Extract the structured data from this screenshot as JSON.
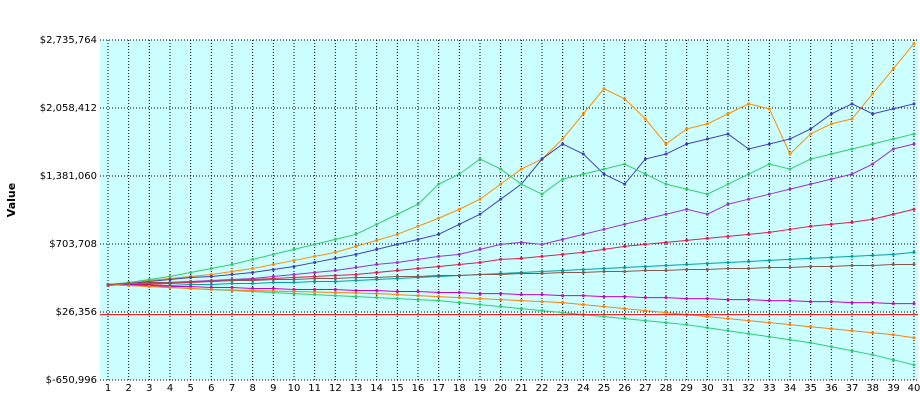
{
  "chart_data": {
    "type": "line",
    "y_label": "Value",
    "x": [
      1,
      2,
      3,
      4,
      5,
      6,
      7,
      8,
      9,
      10,
      11,
      12,
      13,
      14,
      15,
      16,
      17,
      18,
      19,
      20,
      21,
      22,
      23,
      24,
      25,
      26,
      27,
      28,
      29,
      30,
      31,
      32,
      33,
      34,
      35,
      36,
      37,
      38,
      39,
      40
    ],
    "xlim": [
      1,
      40
    ],
    "xticks": [
      1,
      2,
      3,
      4,
      5,
      6,
      7,
      8,
      9,
      10,
      11,
      12,
      13,
      14,
      15,
      16,
      17,
      18,
      19,
      20,
      21,
      22,
      23,
      24,
      25,
      26,
      27,
      28,
      29,
      30,
      31,
      32,
      33,
      34,
      35,
      36,
      37,
      38,
      39,
      40
    ],
    "ylim": [
      -650996,
      2735764
    ],
    "yticks": [
      {
        "value": -650996,
        "label": "$-650,996"
      },
      {
        "value": 26356,
        "label": "$26,356"
      },
      {
        "value": 703708,
        "label": "$703,708"
      },
      {
        "value": 1381060,
        "label": "$1,381,060"
      },
      {
        "value": 2058412,
        "label": "$2,058,412"
      },
      {
        "value": 2735764,
        "label": "$2,735,764"
      }
    ],
    "grid": true,
    "background": "#ccffff",
    "reference_line": {
      "value": 0,
      "color": "#ff0000"
    },
    "series": [
      {
        "color": "#ff8c00",
        "values": [
          300000,
          320000,
          340000,
          360000,
          380000,
          400000,
          430000,
          460000,
          500000,
          540000,
          580000,
          620000,
          680000,
          740000,
          800000,
          880000,
          960000,
          1050000,
          1150000,
          1300000,
          1450000,
          1550000,
          1750000,
          2000000,
          2250000,
          2150000,
          1950000,
          1700000,
          1850000,
          1900000,
          2000000,
          2100000,
          2050000,
          1600000,
          1800000,
          1900000,
          1950000,
          2200000,
          2450000,
          2700000
        ]
      },
      {
        "color": "#3f3fbf",
        "values": [
          300000,
          310000,
          330000,
          350000,
          370000,
          380000,
          400000,
          420000,
          450000,
          480000,
          520000,
          560000,
          600000,
          650000,
          700000,
          750000,
          800000,
          900000,
          1000000,
          1150000,
          1300000,
          1550000,
          1700000,
          1600000,
          1400000,
          1300000,
          1550000,
          1600000,
          1700000,
          1750000,
          1800000,
          1650000,
          1700000,
          1750000,
          1850000,
          2000000,
          2100000,
          2000000,
          2050000,
          2100000
        ]
      },
      {
        "color": "#33cc66",
        "values": [
          300000,
          320000,
          350000,
          380000,
          420000,
          460000,
          500000,
          550000,
          600000,
          650000,
          700000,
          750000,
          800000,
          900000,
          1000000,
          1100000,
          1300000,
          1400000,
          1550000,
          1450000,
          1300000,
          1200000,
          1350000,
          1400000,
          1450000,
          1500000,
          1400000,
          1300000,
          1250000,
          1200000,
          1300000,
          1400000,
          1500000,
          1450000,
          1550000,
          1600000,
          1650000,
          1700000,
          1750000,
          1800000
        ]
      },
      {
        "color": "#9933cc",
        "values": [
          300000,
          300000,
          310000,
          320000,
          330000,
          340000,
          350000,
          360000,
          380000,
          400000,
          420000,
          440000,
          470000,
          500000,
          520000,
          550000,
          580000,
          600000,
          650000,
          700000,
          720000,
          700000,
          750000,
          800000,
          850000,
          900000,
          950000,
          1000000,
          1050000,
          1000000,
          1100000,
          1150000,
          1200000,
          1250000,
          1300000,
          1350000,
          1400000,
          1500000,
          1650000,
          1700000
        ]
      },
      {
        "color": "#e6194b",
        "values": [
          290000,
          300000,
          300000,
          310000,
          320000,
          330000,
          340000,
          350000,
          360000,
          370000,
          380000,
          390000,
          400000,
          420000,
          440000,
          460000,
          480000,
          500000,
          520000,
          550000,
          560000,
          580000,
          600000,
          620000,
          650000,
          680000,
          700000,
          720000,
          740000,
          760000,
          780000,
          800000,
          820000,
          850000,
          880000,
          900000,
          920000,
          950000,
          1000000,
          1050000
        ]
      },
      {
        "color": "#00a0a0",
        "values": [
          300000,
          290000,
          290000,
          290000,
          300000,
          300000,
          310000,
          310000,
          320000,
          320000,
          330000,
          330000,
          340000,
          350000,
          360000,
          370000,
          380000,
          390000,
          400000,
          410000,
          420000,
          430000,
          440000,
          450000,
          460000,
          470000,
          480000,
          490000,
          500000,
          510000,
          520000,
          530000,
          540000,
          550000,
          560000,
          570000,
          580000,
          590000,
          600000,
          620000
        ]
      },
      {
        "color": "#cc00cc",
        "values": [
          300000,
          300000,
          290000,
          280000,
          280000,
          270000,
          270000,
          260000,
          260000,
          250000,
          250000,
          250000,
          240000,
          240000,
          230000,
          230000,
          220000,
          220000,
          210000,
          210000,
          200000,
          200000,
          190000,
          190000,
          180000,
          180000,
          170000,
          170000,
          160000,
          160000,
          150000,
          150000,
          140000,
          140000,
          130000,
          130000,
          120000,
          120000,
          110000,
          110000
        ]
      },
      {
        "color": "#2ecc71",
        "values": [
          300000,
          290000,
          280000,
          270000,
          260000,
          250000,
          240000,
          230000,
          220000,
          210000,
          200000,
          190000,
          180000,
          170000,
          160000,
          150000,
          140000,
          120000,
          100000,
          80000,
          60000,
          40000,
          20000,
          0,
          -20000,
          -40000,
          -60000,
          -80000,
          -100000,
          -130000,
          -160000,
          -190000,
          -220000,
          -250000,
          -280000,
          -320000,
          -360000,
          -400000,
          -450000,
          -500000
        ]
      },
      {
        "color": "#ff7f0e",
        "values": [
          300000,
          290000,
          280000,
          270000,
          260000,
          250000,
          245000,
          240000,
          235000,
          230000,
          225000,
          220000,
          215000,
          210000,
          200000,
          190000,
          180000,
          170000,
          160000,
          150000,
          140000,
          130000,
          120000,
          100000,
          80000,
          60000,
          40000,
          20000,
          0,
          -20000,
          -40000,
          -60000,
          -80000,
          -100000,
          -120000,
          -140000,
          -160000,
          -180000,
          -200000,
          -230000
        ]
      },
      {
        "color": "#8c564b",
        "values": [
          300000,
          310000,
          320000,
          320000,
          330000,
          330000,
          340000,
          340000,
          350000,
          350000,
          360000,
          360000,
          370000,
          370000,
          380000,
          380000,
          390000,
          390000,
          400000,
          400000,
          410000,
          410000,
          420000,
          420000,
          430000,
          430000,
          440000,
          440000,
          450000,
          450000,
          460000,
          460000,
          470000,
          470000,
          480000,
          480000,
          490000,
          490000,
          500000,
          500000
        ]
      }
    ]
  }
}
